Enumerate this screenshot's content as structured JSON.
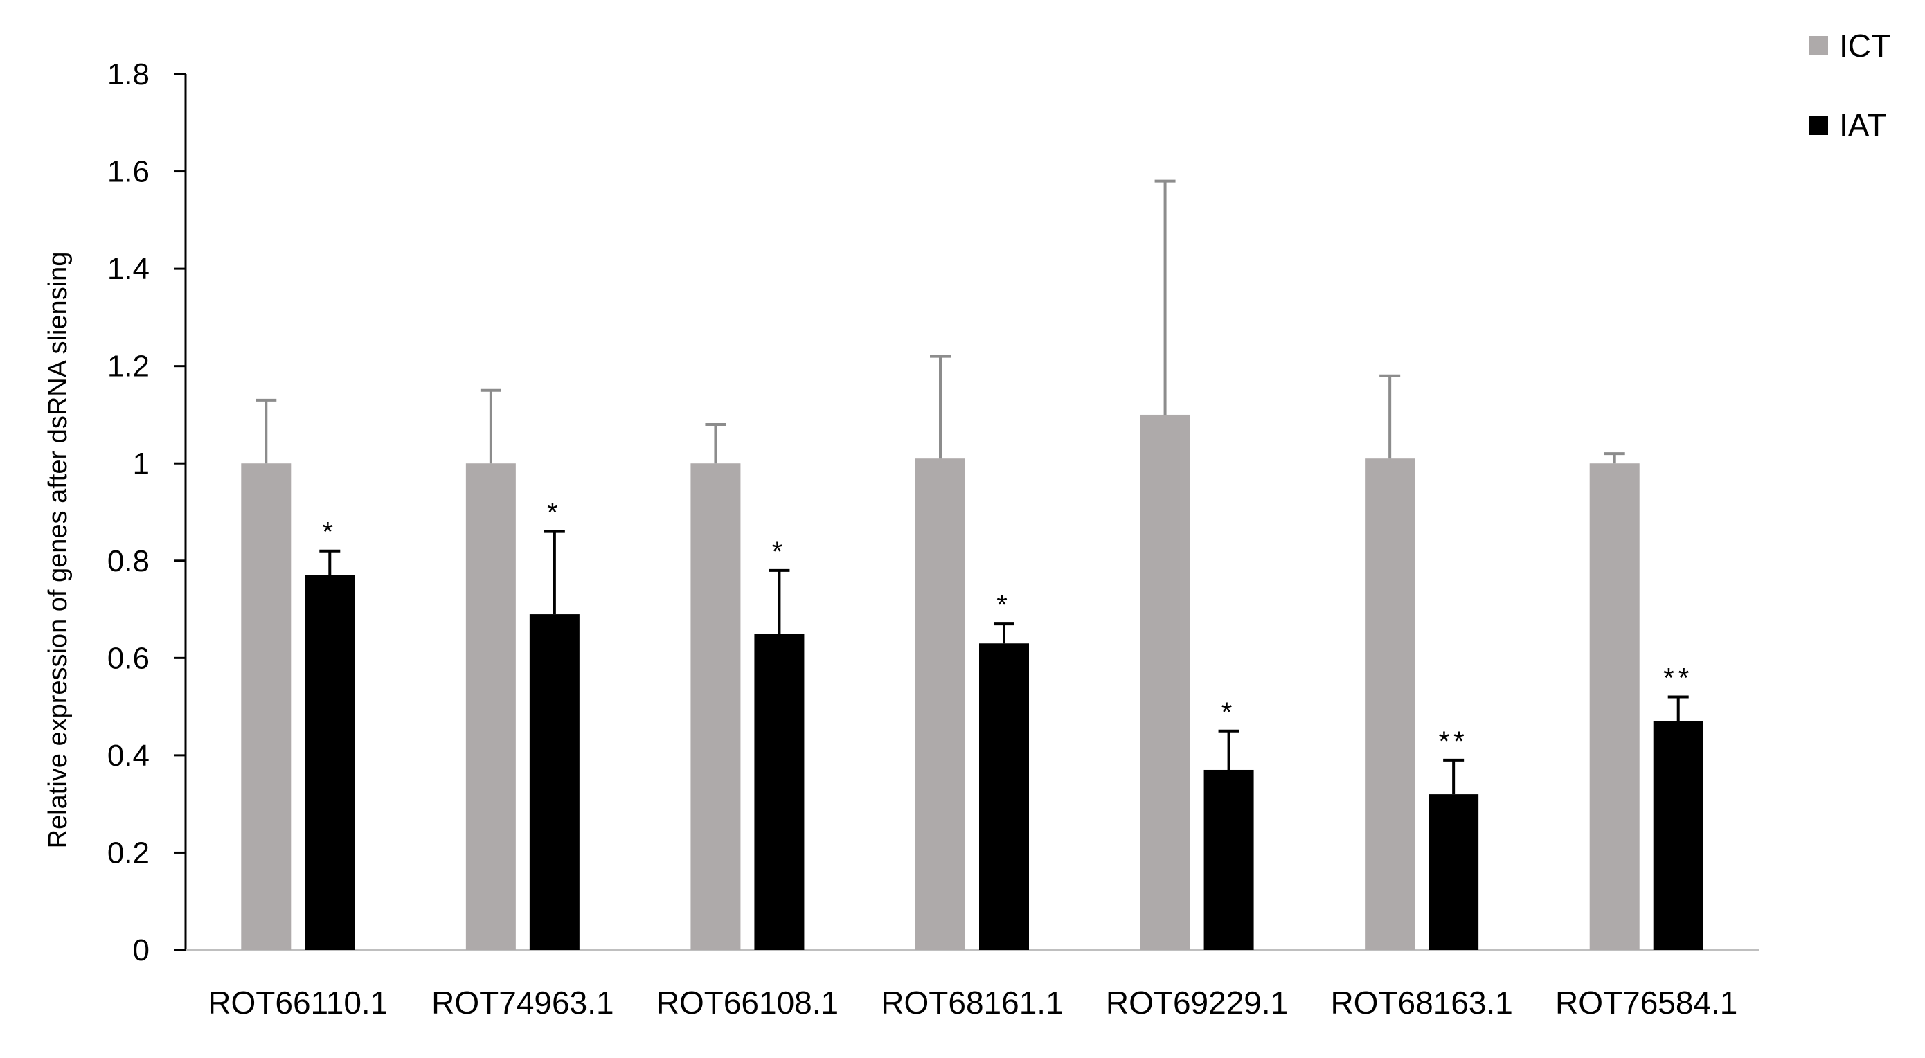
{
  "chart_data": {
    "type": "bar",
    "title": "",
    "xlabel": "",
    "ylabel": "Relative expression of  genes after dsRNA sliensing",
    "ylim": [
      0,
      1.8
    ],
    "yticks": [
      "0",
      "0.2",
      "0.4",
      "0.6",
      "0.8",
      "1",
      "1.2",
      "1.4",
      "1.6",
      "1.8"
    ],
    "categories": [
      "ROT66110.1",
      "ROT74963.1",
      "ROT66108.1",
      "ROT68161.1",
      "ROT69229.1",
      "ROT68163.1",
      "ROT76584.1"
    ],
    "series": [
      {
        "name": "ICT",
        "color": "#aeaaaa",
        "values": [
          1.0,
          1.0,
          1.0,
          1.01,
          1.1,
          1.01,
          1.0
        ],
        "error": [
          0.13,
          0.15,
          0.08,
          0.21,
          0.48,
          0.17,
          0.02
        ]
      },
      {
        "name": "IAT",
        "color": "#000000",
        "values": [
          0.77,
          0.69,
          0.65,
          0.63,
          0.37,
          0.32,
          0.47
        ],
        "error": [
          0.05,
          0.17,
          0.13,
          0.04,
          0.08,
          0.07,
          0.05
        ]
      }
    ],
    "significance": [
      "*",
      "*",
      "*",
      "*",
      "*",
      "**",
      "**"
    ],
    "legend": {
      "position": "top-right",
      "items": [
        "ICT",
        "IAT"
      ]
    },
    "grid": false
  }
}
